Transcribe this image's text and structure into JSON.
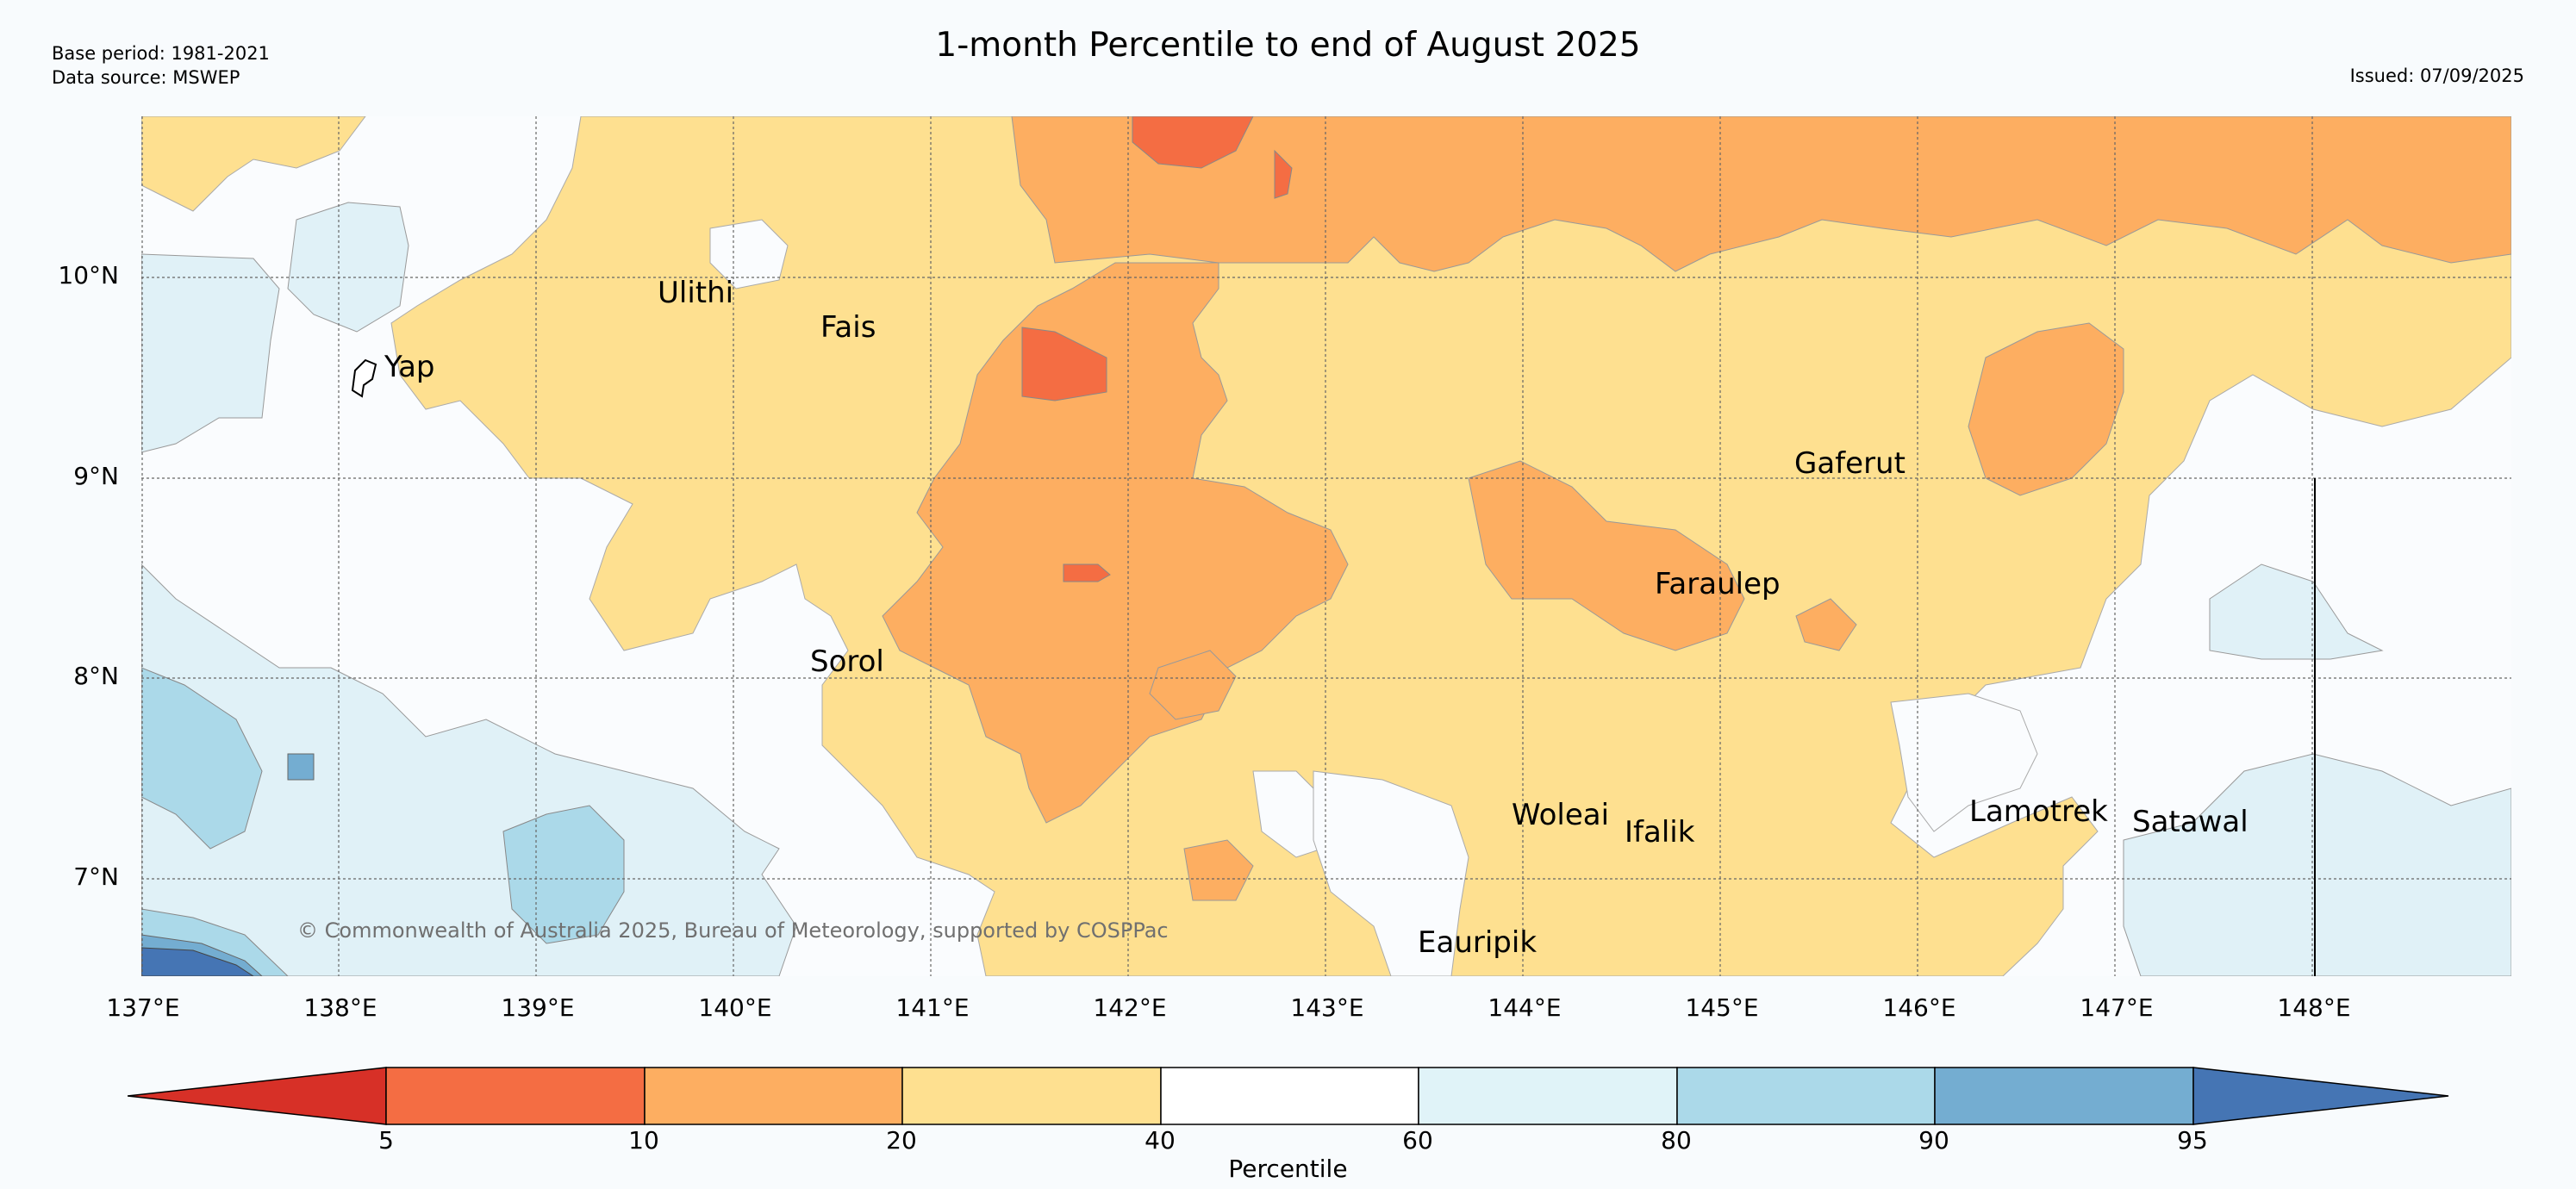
{
  "header": {
    "title": "1-month Percentile to end of August 2025",
    "base_period": "Base period: 1981-2021",
    "data_source": "Data source: MSWEP",
    "issued": "Issued: 07/09/2025"
  },
  "map": {
    "lat_labels": [
      "10°N",
      "9°N",
      "8°N",
      "7°N"
    ],
    "lon_labels": [
      "137°E",
      "138°E",
      "139°E",
      "140°E",
      "141°E",
      "142°E",
      "143°E",
      "144°E",
      "145°E",
      "146°E",
      "147°E",
      "148°E"
    ],
    "places": [
      "Yap",
      "Ulithi",
      "Fais",
      "Gaferut",
      "Faraulep",
      "Sorol",
      "Woleai",
      "Ifalik",
      "Lamotrek",
      "Satawal",
      "Eauripik"
    ],
    "copyright": "© Commonwealth of Australia 2025, Bureau of Meteorology, supported by COSPPac"
  },
  "colorbar": {
    "title": "Percentile",
    "ticks": [
      "5",
      "10",
      "20",
      "40",
      "60",
      "80",
      "90",
      "95"
    ],
    "colors": [
      "#d73027",
      "#f46d43",
      "#fdae61",
      "#fee090",
      "#ffffff",
      "#e0f3f8",
      "#abd9e9",
      "#74add1",
      "#4575b4"
    ]
  }
}
